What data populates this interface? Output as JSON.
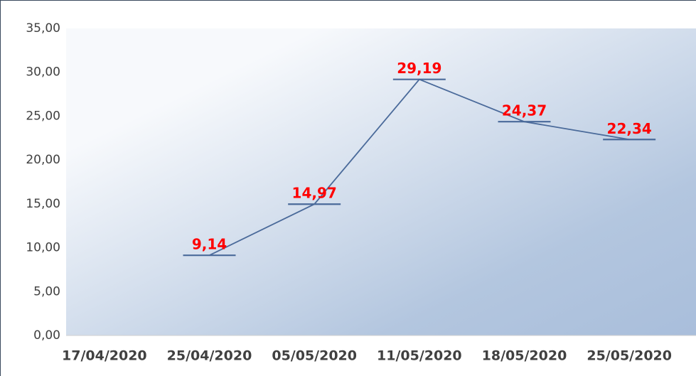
{
  "chart_data": {
    "type": "line",
    "categories": [
      "17/04/2020",
      "25/04/2020",
      "05/05/2020",
      "11/05/2020",
      "18/05/2020",
      "25/05/2020"
    ],
    "values": [
      null,
      9.14,
      14.97,
      29.19,
      24.37,
      22.34
    ],
    "value_labels": [
      null,
      "9,14",
      "14,97",
      "29,19",
      "24,37",
      "22,34"
    ],
    "color": "#4a6a9a",
    "label_color": "#ff0000",
    "ylim": [
      0,
      35
    ],
    "yticks": [
      {
        "value": 0,
        "label": "0,00"
      },
      {
        "value": 5,
        "label": "5,00"
      },
      {
        "value": 10,
        "label": "10,00"
      },
      {
        "value": 15,
        "label": "15,00"
      },
      {
        "value": 20,
        "label": "20,00"
      },
      {
        "value": 25,
        "label": "25,00"
      },
      {
        "value": 30,
        "label": "30,00"
      },
      {
        "value": 35,
        "label": "35,00"
      }
    ],
    "grid": false
  }
}
